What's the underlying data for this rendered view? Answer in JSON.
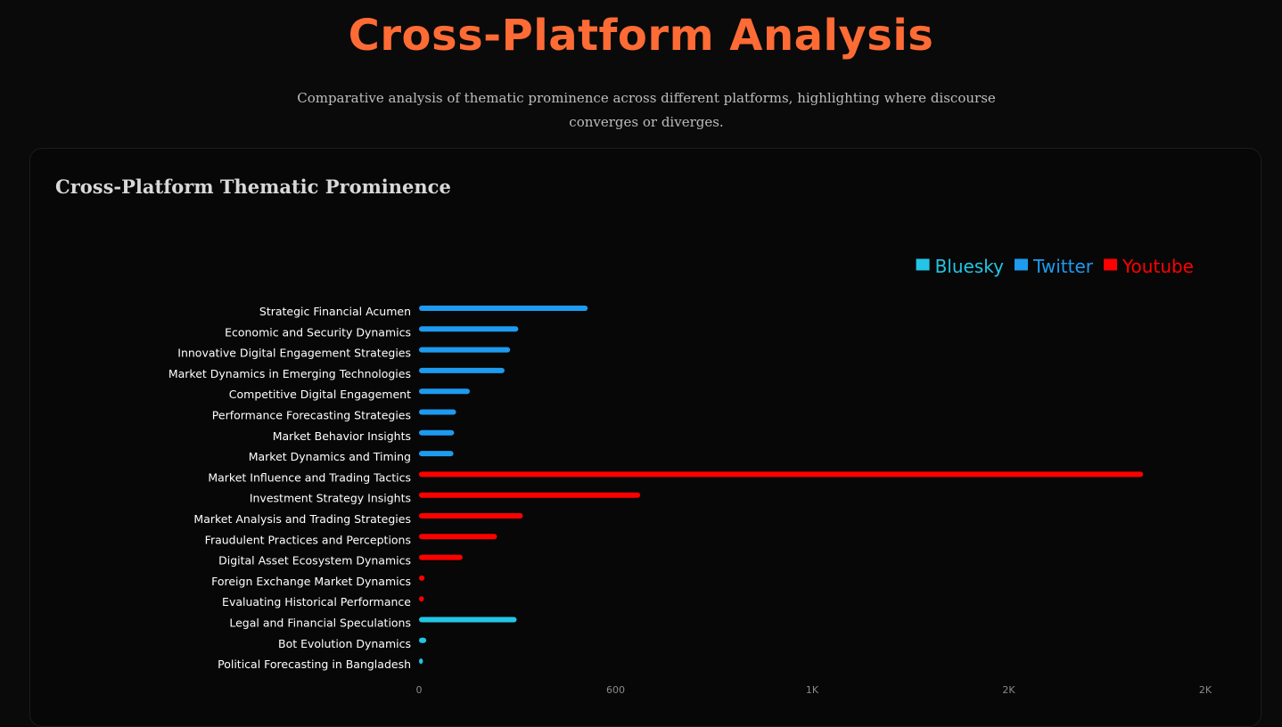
{
  "header": {
    "title": "Cross-Platform Analysis",
    "subtitle": "Comparative analysis of thematic prominence across different platforms, highlighting where discourse converges or diverges."
  },
  "card": {
    "title": "Cross-Platform Thematic Prominence"
  },
  "colors": {
    "accent": "#ff6b35",
    "bluesky": "#22c5e5",
    "twitter": "#1d9bf0",
    "youtube": "#ff0000",
    "label": "#ffffff",
    "tick": "#8a8a8a"
  },
  "chart_data": {
    "type": "bar",
    "orientation": "horizontal",
    "title": "Cross-Platform Thematic Prominence",
    "legend": [
      {
        "name": "Bluesky",
        "color": "#22c5e5"
      },
      {
        "name": "Twitter",
        "color": "#1d9bf0"
      },
      {
        "name": "Youtube",
        "color": "#ff0000"
      }
    ],
    "legend_position": "top-right",
    "x_ticks": [
      "0",
      "600",
      "1K",
      "2K",
      "2K"
    ],
    "x_tick_values": [
      0,
      600,
      1200,
      1800,
      2400
    ],
    "xlim": [
      0,
      2400
    ],
    "grid": false,
    "categories": [
      {
        "label": "Strategic Financial Acumen",
        "platform": "Twitter",
        "value": 515
      },
      {
        "label": "Economic and Security Dynamics",
        "platform": "Twitter",
        "value": 303
      },
      {
        "label": "Innovative Digital Engagement Strategies",
        "platform": "Twitter",
        "value": 278
      },
      {
        "label": "Market Dynamics in Emerging Technologies",
        "platform": "Twitter",
        "value": 261
      },
      {
        "label": "Competitive Digital Engagement",
        "platform": "Twitter",
        "value": 155
      },
      {
        "label": "Performance Forecasting Strategies",
        "platform": "Twitter",
        "value": 113
      },
      {
        "label": "Market Behavior Insights",
        "platform": "Twitter",
        "value": 107
      },
      {
        "label": "Market Dynamics and Timing",
        "platform": "Twitter",
        "value": 105
      },
      {
        "label": "Market Influence and Trading Tactics",
        "platform": "Youtube",
        "value": 2210
      },
      {
        "label": "Investment Strategy Insights",
        "platform": "Youtube",
        "value": 675
      },
      {
        "label": "Market Analysis and Trading Strategies",
        "platform": "Youtube",
        "value": 317
      },
      {
        "label": "Fraudulent Practices and Perceptions",
        "platform": "Youtube",
        "value": 238
      },
      {
        "label": "Digital Asset Ecosystem Dynamics",
        "platform": "Youtube",
        "value": 133
      },
      {
        "label": "Foreign Exchange Market Dynamics",
        "platform": "Youtube",
        "value": 17
      },
      {
        "label": "Evaluating Historical Performance",
        "platform": "Youtube",
        "value": 15
      },
      {
        "label": "Legal and Financial Speculations",
        "platform": "Bluesky",
        "value": 298
      },
      {
        "label": "Bot Evolution Dynamics",
        "platform": "Bluesky",
        "value": 22
      },
      {
        "label": "Political Forecasting in Bangladesh",
        "platform": "Bluesky",
        "value": 12
      }
    ]
  }
}
